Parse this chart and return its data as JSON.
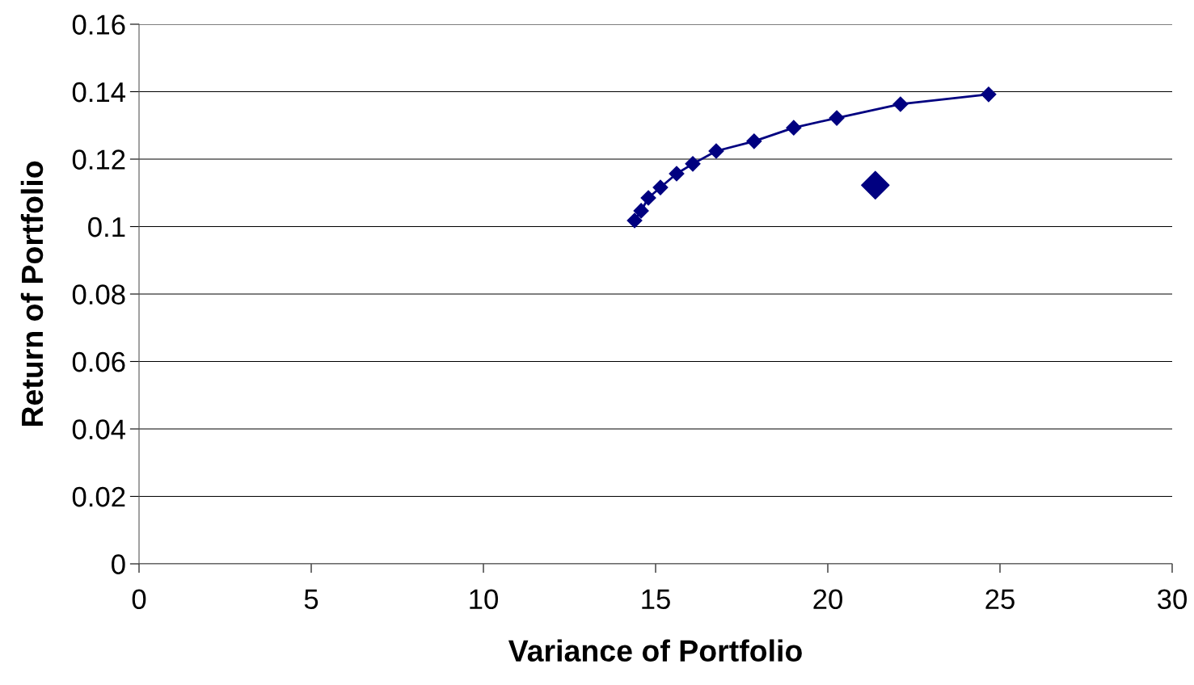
{
  "chart_data": {
    "type": "line",
    "xlabel": "Variance of Portfolio",
    "ylabel": "Return of Portfolio",
    "xlim": [
      0,
      30
    ],
    "xticks": [
      0,
      5,
      10,
      15,
      20,
      25,
      30
    ],
    "ylim": [
      0,
      0.16
    ],
    "yticks": [
      {
        "value": 0,
        "label": "0"
      },
      {
        "value": 0.02,
        "label": "0.02"
      },
      {
        "value": 0.04,
        "label": "0.04"
      },
      {
        "value": 0.06,
        "label": "0.06"
      },
      {
        "value": 0.08,
        "label": "0.08"
      },
      {
        "value": 0.1,
        "label": "0.1"
      },
      {
        "value": 0.12,
        "label": "0.12"
      },
      {
        "value": 0.14,
        "label": "0.14"
      },
      {
        "value": 0.16,
        "label": "0.16"
      }
    ],
    "grid": "y",
    "marker": "diamond",
    "legend": false,
    "series": [
      {
        "color": "#000080",
        "x": [
          14.39,
          14.58,
          14.79,
          15.14,
          15.61,
          16.08,
          16.76,
          17.86,
          19.01,
          20.26,
          22.11,
          24.67
        ],
        "values": [
          0.1018,
          0.1047,
          0.1085,
          0.1116,
          0.1157,
          0.1186,
          0.1224,
          0.1253,
          0.1293,
          0.1322,
          0.1363,
          0.1392
        ]
      },
      {
        "type": "scatter",
        "color": "#000080",
        "x": [
          21.38
        ],
        "values": [
          0.1123
        ]
      }
    ]
  }
}
